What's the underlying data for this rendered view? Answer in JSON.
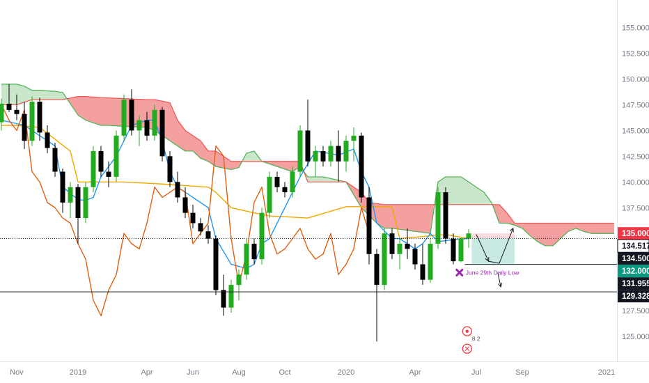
{
  "chart_data": {
    "type": "candlestick",
    "ylim": [
      122.5,
      157.0
    ],
    "y_ticks": [
      "125.000",
      "127.500",
      "130.000",
      "132.500",
      "135.000",
      "137.500",
      "140.000",
      "142.500",
      "145.000",
      "147.500",
      "150.000",
      "152.500",
      "155.000"
    ],
    "x_ticks": [
      {
        "t": 2,
        "label": "Nov"
      },
      {
        "t": 10,
        "label": "2019"
      },
      {
        "t": 19,
        "label": "Apr"
      },
      {
        "t": 25,
        "label": "Jun"
      },
      {
        "t": 31,
        "label": "Aug"
      },
      {
        "t": 37,
        "label": "Oct"
      },
      {
        "t": 45,
        "label": "2020"
      },
      {
        "t": 54,
        "label": "Apr"
      },
      {
        "t": 62,
        "label": "Jul"
      },
      {
        "t": 68,
        "label": "Sep"
      },
      {
        "t": 79,
        "label": "2021"
      }
    ],
    "candles": [
      [
        145.8,
        148.1,
        145.0,
        147.6
      ],
      [
        147.6,
        149.5,
        146.8,
        147.0
      ],
      [
        147.0,
        148.5,
        146.0,
        146.6
      ],
      [
        146.6,
        147.8,
        143.2,
        144.0
      ],
      [
        144.0,
        148.3,
        143.5,
        147.8
      ],
      [
        147.8,
        148.2,
        144.0,
        144.8
      ],
      [
        144.8,
        145.5,
        142.8,
        143.3
      ],
      [
        143.3,
        143.8,
        140.5,
        141.0
      ],
      [
        141.0,
        141.3,
        137.0,
        138.0
      ],
      [
        138.0,
        140.0,
        136.5,
        139.5
      ],
      [
        139.5,
        139.8,
        134.0,
        136.5
      ],
      [
        136.5,
        140.0,
        136.0,
        139.5
      ],
      [
        139.5,
        143.5,
        139.0,
        143.0
      ],
      [
        143.0,
        143.5,
        140.5,
        141.0
      ],
      [
        141.0,
        142.0,
        139.5,
        140.5
      ],
      [
        140.5,
        145.0,
        140.0,
        144.5
      ],
      [
        144.5,
        148.5,
        144.0,
        148.0
      ],
      [
        148.0,
        149.0,
        144.5,
        145.0
      ],
      [
        145.0,
        146.5,
        143.5,
        146.0
      ],
      [
        146.0,
        146.8,
        144.0,
        144.5
      ],
      [
        144.5,
        147.5,
        144.0,
        147.0
      ],
      [
        147.0,
        147.3,
        142.0,
        142.5
      ],
      [
        142.5,
        143.0,
        139.5,
        140.0
      ],
      [
        140.0,
        141.0,
        138.0,
        138.5
      ],
      [
        138.5,
        139.5,
        136.5,
        137.0
      ],
      [
        137.0,
        137.8,
        135.5,
        136.0
      ],
      [
        136.0,
        136.5,
        134.8,
        135.2
      ],
      [
        135.2,
        135.8,
        134.0,
        134.5
      ],
      [
        134.5,
        134.8,
        129.0,
        129.5
      ],
      [
        129.5,
        131.0,
        127.0,
        127.8
      ],
      [
        127.8,
        130.5,
        127.3,
        130.0
      ],
      [
        130.0,
        131.5,
        128.5,
        131.0
      ],
      [
        131.0,
        134.5,
        130.5,
        134.0
      ],
      [
        134.0,
        134.5,
        132.0,
        132.5
      ],
      [
        132.5,
        137.5,
        132.0,
        137.0
      ],
      [
        137.0,
        141.0,
        136.5,
        140.5
      ],
      [
        140.5,
        141.0,
        139.0,
        139.5
      ],
      [
        139.5,
        140.0,
        138.5,
        139.0
      ],
      [
        139.0,
        141.5,
        138.5,
        141.0
      ],
      [
        141.0,
        145.5,
        140.5,
        145.0
      ],
      [
        145.0,
        148.0,
        141.5,
        142.0
      ],
      [
        142.0,
        143.5,
        140.5,
        143.0
      ],
      [
        143.0,
        143.5,
        141.5,
        142.0
      ],
      [
        142.0,
        144.0,
        141.5,
        143.5
      ],
      [
        143.5,
        145.0,
        140.0,
        142.0
      ],
      [
        142.0,
        144.5,
        141.0,
        144.0
      ],
      [
        144.0,
        145.3,
        142.0,
        144.5
      ],
      [
        144.5,
        144.8,
        138.0,
        138.5
      ],
      [
        138.5,
        139.5,
        132.0,
        133.0
      ],
      [
        133.0,
        133.5,
        124.5,
        130.0
      ],
      [
        130.0,
        135.5,
        129.5,
        135.0
      ],
      [
        135.0,
        135.5,
        132.5,
        133.0
      ],
      [
        133.0,
        134.5,
        131.5,
        134.0
      ],
      [
        134.0,
        135.5,
        132.5,
        133.5
      ],
      [
        133.5,
        134.0,
        131.5,
        132.0
      ],
      [
        132.0,
        134.0,
        130.0,
        130.5
      ],
      [
        130.5,
        134.5,
        130.2,
        134.0
      ],
      [
        134.0,
        139.5,
        133.5,
        139.0
      ],
      [
        139.0,
        139.5,
        134.0,
        134.5
      ],
      [
        134.5,
        135.0,
        132.0,
        132.3
      ],
      [
        132.3,
        134.6,
        132.2,
        134.5
      ],
      [
        134.5,
        135.4,
        133.6,
        135.0
      ]
    ],
    "kijun": [
      [
        0,
        145.5
      ],
      [
        2,
        145.5
      ],
      [
        5,
        145.3
      ],
      [
        9,
        143.0
      ],
      [
        10,
        140.0
      ],
      [
        12,
        140.0
      ],
      [
        16,
        140.0
      ],
      [
        21,
        139.8
      ],
      [
        27,
        139.5
      ],
      [
        28,
        139.0
      ],
      [
        30,
        137.5
      ],
      [
        33,
        137.0
      ],
      [
        35,
        136.7
      ],
      [
        40,
        136.5
      ],
      [
        45,
        137.6
      ],
      [
        51,
        137.6
      ],
      [
        52,
        134.5
      ],
      [
        55,
        134.7
      ],
      [
        58,
        134.9
      ],
      [
        61,
        134.5
      ]
    ],
    "tenkan": [
      [
        0,
        146.0
      ],
      [
        3,
        145.5
      ],
      [
        5,
        144.5
      ],
      [
        7,
        143.5
      ],
      [
        8,
        139.5
      ],
      [
        10,
        138.3
      ],
      [
        11,
        138.2
      ],
      [
        12,
        138.5
      ],
      [
        13,
        140.5
      ],
      [
        15,
        142.5
      ],
      [
        17,
        145.5
      ],
      [
        19,
        146.0
      ],
      [
        20,
        146.0
      ],
      [
        21,
        144.0
      ],
      [
        22,
        141.0
      ],
      [
        23,
        139.5
      ],
      [
        24,
        139.0
      ],
      [
        25,
        138.5
      ],
      [
        27,
        137.5
      ],
      [
        28,
        134.5
      ],
      [
        30,
        132.0
      ],
      [
        32,
        131.6
      ],
      [
        33,
        132.0
      ],
      [
        34,
        134.0
      ],
      [
        35,
        134.5
      ],
      [
        36,
        136.0
      ],
      [
        37,
        137.5
      ],
      [
        38,
        139.0
      ],
      [
        39,
        140.5
      ],
      [
        41,
        143.0
      ],
      [
        44,
        142.6
      ],
      [
        46,
        143.2
      ],
      [
        47,
        141.0
      ],
      [
        48,
        139.5
      ],
      [
        49,
        136.0
      ],
      [
        51,
        134.5
      ],
      [
        52,
        134.5
      ],
      [
        54,
        133.5
      ],
      [
        55,
        134.0
      ],
      [
        56,
        135.0
      ],
      [
        57,
        134.2
      ],
      [
        59,
        134.4
      ],
      [
        61,
        134.5
      ]
    ],
    "chikou": [
      [
        0,
        147.5
      ],
      [
        1,
        146.0
      ],
      [
        2,
        145.0
      ],
      [
        3,
        147.0
      ],
      [
        4,
        141.0
      ],
      [
        5,
        140.0
      ],
      [
        6,
        138.0
      ],
      [
        7,
        137.5
      ],
      [
        8,
        136.5
      ],
      [
        9,
        136.0
      ],
      [
        10,
        134.0
      ],
      [
        11,
        132.5
      ],
      [
        12,
        128.5
      ],
      [
        13,
        127.0
      ],
      [
        14,
        129.5
      ],
      [
        15,
        131.0
      ],
      [
        16,
        135.0
      ],
      [
        17,
        134.0
      ],
      [
        18,
        133.5
      ],
      [
        19,
        136.0
      ],
      [
        20,
        139.5
      ],
      [
        21,
        138.5
      ],
      [
        22,
        139.0
      ],
      [
        23,
        139.5
      ],
      [
        24,
        139.0
      ],
      [
        25,
        134.0
      ],
      [
        26,
        135.0
      ],
      [
        27,
        136.0
      ],
      [
        28,
        143.5
      ],
      [
        29,
        142.5
      ],
      [
        30,
        134.5
      ],
      [
        31,
        130.0
      ],
      [
        32,
        133.0
      ],
      [
        33,
        138.0
      ],
      [
        34,
        139.5
      ],
      [
        35,
        135.0
      ],
      [
        36,
        133.0
      ],
      [
        37,
        133.5
      ],
      [
        38,
        134.5
      ],
      [
        39,
        135.5
      ],
      [
        40,
        133.5
      ],
      [
        41,
        132.5
      ],
      [
        42,
        133.0
      ],
      [
        43,
        135.0
      ],
      [
        44,
        131.0
      ],
      [
        45,
        132.0
      ],
      [
        46,
        133.5
      ],
      [
        47,
        137.5
      ],
      [
        48,
        135.0
      ]
    ],
    "span_a": [
      [
        0,
        149.5
      ],
      [
        2,
        149.5
      ],
      [
        3,
        149.3
      ],
      [
        4,
        148.9
      ],
      [
        5,
        148.9
      ],
      [
        7,
        148.8
      ],
      [
        8,
        148.7
      ],
      [
        10,
        146.5
      ],
      [
        11,
        146.0
      ],
      [
        13,
        145.5
      ],
      [
        14,
        145.5
      ],
      [
        16,
        145.4
      ],
      [
        19,
        145.3
      ],
      [
        20,
        145.0
      ],
      [
        22,
        144.0
      ],
      [
        23,
        143.5
      ],
      [
        24,
        143.0
      ],
      [
        25,
        143.0
      ],
      [
        26,
        142.3
      ],
      [
        27,
        142.0
      ],
      [
        28,
        141.5
      ],
      [
        30,
        141.2
      ],
      [
        31,
        141.4
      ],
      [
        32,
        142.8
      ],
      [
        33,
        143.0
      ],
      [
        34,
        142.0
      ],
      [
        36,
        141.5
      ],
      [
        38,
        141.0
      ],
      [
        39,
        141.5
      ],
      [
        40,
        140.5
      ],
      [
        42,
        140.5
      ],
      [
        45,
        140.0
      ],
      [
        47,
        137.5
      ],
      [
        49,
        136.0
      ],
      [
        50,
        135.5
      ],
      [
        51,
        135.5
      ],
      [
        53,
        135.3
      ],
      [
        56,
        135.0
      ],
      [
        57,
        140.0
      ],
      [
        58,
        140.5
      ],
      [
        60,
        140.5
      ],
      [
        61,
        140.0
      ],
      [
        62,
        139.5
      ],
      [
        63,
        139.0
      ],
      [
        64,
        138.0
      ],
      [
        65,
        136.0
      ],
      [
        66,
        136.0
      ],
      [
        67,
        135.8
      ],
      [
        68,
        135.5
      ],
      [
        69,
        134.8
      ],
      [
        70,
        134.2
      ],
      [
        71,
        133.8
      ],
      [
        72,
        133.8
      ],
      [
        73,
        134.5
      ],
      [
        74,
        135.2
      ],
      [
        75,
        135.5
      ],
      [
        76,
        135.2
      ],
      [
        77,
        135.0
      ],
      [
        78,
        135.0
      ],
      [
        79,
        135.0
      ],
      [
        80,
        135.0
      ]
    ],
    "span_b": [
      [
        0,
        147.5
      ],
      [
        2,
        147.5
      ],
      [
        4,
        148.0
      ],
      [
        8,
        148.0
      ],
      [
        10,
        148.3
      ],
      [
        11,
        148.3
      ],
      [
        13,
        148.2
      ],
      [
        16,
        148.1
      ],
      [
        19,
        148.0
      ],
      [
        20,
        148.0
      ],
      [
        22,
        147.7
      ],
      [
        23,
        146.0
      ],
      [
        24,
        145.0
      ],
      [
        26,
        144.0
      ],
      [
        27,
        143.0
      ],
      [
        28,
        143.0
      ],
      [
        30,
        142.0
      ],
      [
        33,
        142.0
      ],
      [
        35,
        142.0
      ],
      [
        39,
        142.0
      ],
      [
        40,
        140.0
      ],
      [
        44,
        140.0
      ],
      [
        45,
        140.0
      ],
      [
        47,
        139.0
      ],
      [
        48,
        138.0
      ],
      [
        50,
        137.8
      ],
      [
        52,
        137.8
      ],
      [
        55,
        137.8
      ],
      [
        57,
        137.8
      ],
      [
        58,
        137.8
      ],
      [
        60,
        137.8
      ],
      [
        62,
        137.8
      ],
      [
        64,
        137.8
      ],
      [
        65,
        137.8
      ],
      [
        66,
        137.0
      ],
      [
        67,
        136.0
      ],
      [
        68,
        136.0
      ],
      [
        70,
        136.0
      ],
      [
        72,
        136.0
      ],
      [
        74,
        136.0
      ],
      [
        76,
        136.0
      ],
      [
        78,
        136.0
      ],
      [
        80,
        136.0
      ]
    ],
    "current_price": 134.517,
    "price_tags": [
      {
        "value": 135.0,
        "label": "135.000",
        "bg": "#f23645",
        "fg": "#ffffff"
      },
      {
        "value": 134.517,
        "label": "134.517",
        "bg": "#ffffff",
        "fg": "#131722"
      },
      {
        "value": 134.5,
        "label": "134.500",
        "bg": "#131722",
        "fg": "#ffffff"
      },
      {
        "value": 132.0,
        "label": "132.000",
        "bg": "#089981",
        "fg": "#ffffff"
      },
      {
        "value": 131.955,
        "label": "131.955",
        "bg": "#131722",
        "fg": "#ffffff"
      },
      {
        "value": 129.328,
        "label": "129.328",
        "bg": "#131722",
        "fg": "#ffffff"
      }
    ],
    "hlines": [
      {
        "value": 132.0,
        "x0": 60.5
      },
      {
        "value": 129.328,
        "x0": 0
      }
    ],
    "annotations": {
      "marker_text": "June 29th Daily Low",
      "marker_value": 131.2,
      "marker_t": 59.8,
      "badge_text": "8 2"
    },
    "colors": {
      "bull": "#22ab1e",
      "bear": "#000000",
      "kijun": "#f0a800",
      "tenkan": "#2196f3",
      "chikou": "#e06010",
      "span_a": "#4caf50",
      "span_b": "#ef5350",
      "cloud_bull": "#a5d6a7",
      "cloud_bear": "#f28080",
      "marker": "#9c27b0",
      "badge": "#f23645"
    }
  }
}
